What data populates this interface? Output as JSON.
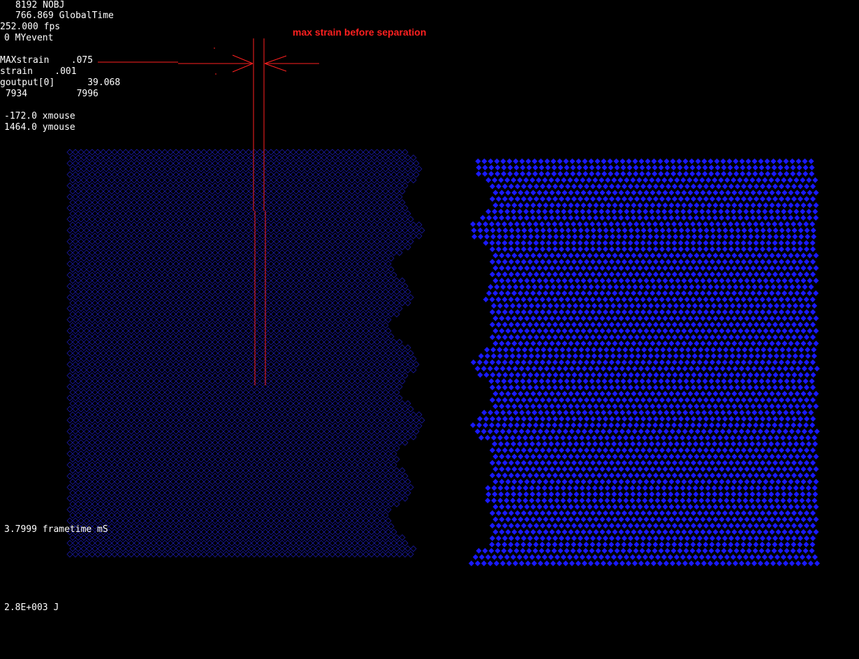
{
  "hud": {
    "nobj": "8192 NOBJ",
    "global_time": "766.869 GlobalTime",
    "fps": "252.000 fps",
    "myevent": "0 MYevent",
    "maxstrain": "MAXstrain    .075",
    "strain": "strain    .001",
    "goutput": "goutput[0]      39.068",
    "ids": " 7934         7996",
    "xmouse": "-172.0 xmouse",
    "ymouse": "1464.0 ymouse",
    "frametime": "3.7999 frametime mS",
    "energy": "2.8E+003 J"
  },
  "annotation": {
    "title": "max  strain before separation",
    "color": "#ff2020"
  },
  "colors": {
    "background": "#000000",
    "left_block": "#1a1aa8",
    "right_block": "#1a1aff"
  }
}
